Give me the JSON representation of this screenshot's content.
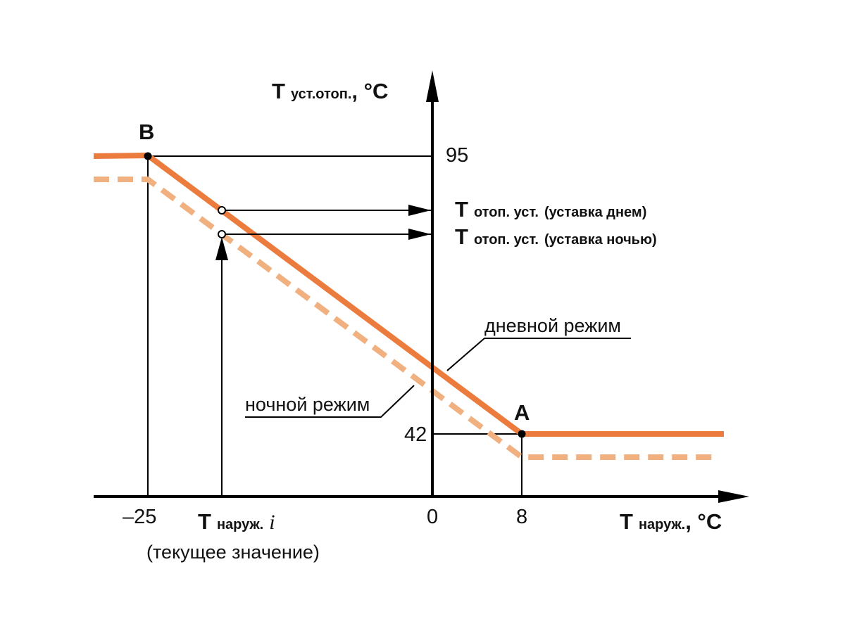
{
  "colors": {
    "day_curve": "#ec7b3e",
    "night_curve": "#f1b07f",
    "axes": "#000000"
  },
  "y_axis": {
    "symbol": "T",
    "subscript": "уст.отоп.",
    "unit": ", °С"
  },
  "x_axis": {
    "symbol": "T",
    "subscript": "наруж.",
    "unit": ", °С"
  },
  "points": {
    "B": "B",
    "A": "A"
  },
  "y_ticks": {
    "max": "95",
    "min": "42"
  },
  "x_ticks": {
    "left": "–25",
    "zero": "0",
    "right": "8"
  },
  "setpoint_day": {
    "symbol": "T",
    "subscript": "отоп. уст.",
    "note": "(уставка днем)"
  },
  "setpoint_night": {
    "symbol": "T",
    "subscript": "отоп. уст.",
    "note": "(уставка ночью)"
  },
  "current_outdoor": {
    "symbol": "T",
    "subscript": "наруж.",
    "index": "i",
    "note": "(текущее значение)"
  },
  "mode_labels": {
    "day": "дневной режим",
    "night": "ночной режим"
  },
  "chart_data": {
    "type": "line",
    "series": [
      {
        "name": "дневной режим",
        "x": [
          -25,
          8
        ],
        "y": [
          95,
          42
        ],
        "style": "solid"
      },
      {
        "name": "ночной режим",
        "style": "dashed"
      }
    ],
    "annotations": [
      "B",
      "A"
    ]
  }
}
